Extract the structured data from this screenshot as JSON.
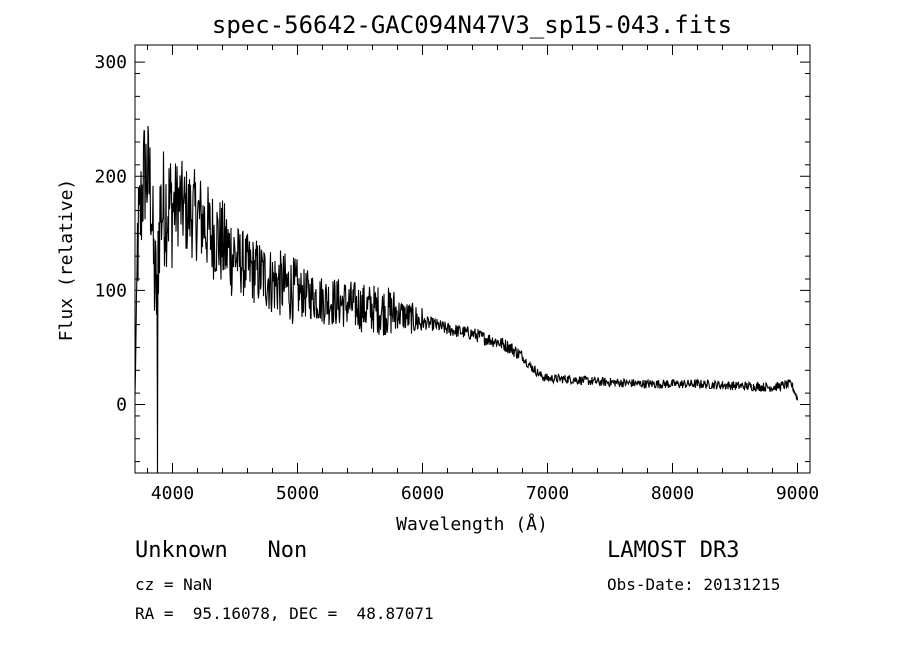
{
  "chart_data": {
    "type": "line",
    "title": "spec-56642-GAC094N47V3_sp15-043.fits",
    "xlabel": "Wavelength (Å)",
    "ylabel": "Flux (relative)",
    "xlim": [
      3700,
      9100
    ],
    "ylim": [
      -60,
      315
    ],
    "xticks": [
      4000,
      5000,
      6000,
      7000,
      8000,
      9000
    ],
    "yticks": [
      0,
      100,
      200,
      300
    ],
    "grid": false,
    "series": [
      {
        "name": "flux",
        "anchors": [
          [
            3700,
            5
          ],
          [
            3720,
            140
          ],
          [
            3740,
            160
          ],
          [
            3760,
            190
          ],
          [
            3780,
            205
          ],
          [
            3800,
            200
          ],
          [
            3830,
            185
          ],
          [
            3850,
            120
          ],
          [
            3870,
            95
          ],
          [
            3900,
            170
          ],
          [
            3950,
            175
          ],
          [
            4000,
            172
          ],
          [
            4050,
            178
          ],
          [
            4100,
            170
          ],
          [
            4150,
            168
          ],
          [
            4200,
            165
          ],
          [
            4250,
            160
          ],
          [
            4300,
            150
          ],
          [
            4350,
            148
          ],
          [
            4400,
            140
          ],
          [
            4500,
            130
          ],
          [
            4600,
            120
          ],
          [
            4700,
            115
          ],
          [
            4800,
            108
          ],
          [
            4900,
            104
          ],
          [
            5000,
            98
          ],
          [
            5100,
            96
          ],
          [
            5200,
            92
          ],
          [
            5300,
            90
          ],
          [
            5400,
            88
          ],
          [
            5500,
            85
          ],
          [
            5600,
            84
          ],
          [
            5700,
            82
          ],
          [
            5800,
            80
          ],
          [
            5900,
            76
          ],
          [
            6000,
            72
          ],
          [
            6100,
            70
          ],
          [
            6200,
            66
          ],
          [
            6300,
            64
          ],
          [
            6400,
            62
          ],
          [
            6500,
            58
          ],
          [
            6600,
            55
          ],
          [
            6700,
            50
          ],
          [
            6800,
            42
          ],
          [
            6850,
            35
          ],
          [
            6900,
            30
          ],
          [
            6950,
            25
          ],
          [
            7000,
            23
          ],
          [
            7200,
            22
          ],
          [
            7400,
            20
          ],
          [
            7600,
            19
          ],
          [
            7800,
            18
          ],
          [
            8000,
            18
          ],
          [
            8200,
            18
          ],
          [
            8400,
            17
          ],
          [
            8600,
            16
          ],
          [
            8800,
            15
          ],
          [
            8950,
            18
          ],
          [
            8990,
            8
          ],
          [
            9000,
            5
          ]
        ],
        "dip": {
          "x": 3880,
          "y": -60
        }
      }
    ],
    "color": "#000000"
  },
  "labels": {
    "left_line1": "Unknown   Non",
    "left_line2": "cz = NaN",
    "left_line3": "RA =  95.16078, DEC =  48.87071",
    "right_line1": "LAMOST DR3",
    "right_line2": "Obs-Date: 20131215"
  }
}
